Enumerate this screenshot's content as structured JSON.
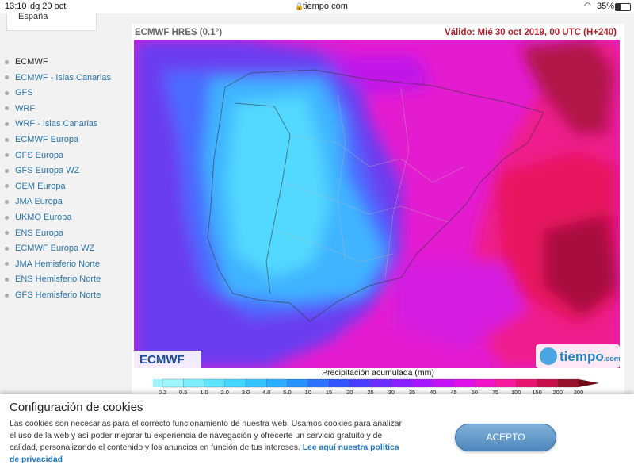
{
  "status_bar": {
    "time": "13:10",
    "date": "dg 20 oct",
    "url": "tiempo.com",
    "battery": "35%"
  },
  "sidebar": {
    "select": "España",
    "links": [
      "ECMWF",
      "ECMWF - Islas Canarias",
      "GFS",
      "WRF",
      "WRF - Islas Canarias",
      "ECMWF Europa",
      "GFS Europa",
      "GFS Europa WZ",
      "GEM Europa",
      "JMA Europa",
      "UKMO Europa",
      "ENS Europa",
      "ECMWF Europa WZ",
      "JMA Hemisferio Norte",
      "ENS Hemisferio Norte",
      "GFS Hemisferio Norte"
    ]
  },
  "map": {
    "model": "ECMWF HRES (0.1°)",
    "valid": "Válido: Mié 30 oct 2019, 00 UTC (H+240)",
    "logo_left": "ECMWF",
    "logo_right": "tiempo",
    "logo_right_suffix": ".com"
  },
  "legend": {
    "title": "Precipitación acumulada (mm)",
    "labels": [
      "0.2",
      "0.5",
      "1.0",
      "2.0",
      "3.0",
      "4.0",
      "5.0",
      "10",
      "15",
      "20",
      "25",
      "30",
      "35",
      "40",
      "45",
      "50",
      "75",
      "100",
      "150",
      "200",
      "300"
    ],
    "colors": [
      "#9ff5ff",
      "#7eeeff",
      "#5fe4ff",
      "#45d6ff",
      "#36c4ff",
      "#2aaeff",
      "#2592ff",
      "#2a74ff",
      "#3355ff",
      "#4a3cff",
      "#6a2cff",
      "#8a20ff",
      "#a818ff",
      "#c410f5",
      "#dc10e6",
      "#ee12c8",
      "#f51a9e",
      "#e81670",
      "#c5104c",
      "#98102c",
      "#6e0a14"
    ]
  },
  "cookies": {
    "title": "Configuración de cookies",
    "text": "Las cookies son necesarias para el correcto funcionamiento de nuestra web. Usamos cookies para analizar el uso de la web y así poder mejorar tu experiencia de navegación y ofrecerte un servicio gratuito y de calidad, personalizando el contenido y los anuncios en función de tus intereses.",
    "link": "Lee aquí nuestra política de privacidad",
    "button": "ACEPTO"
  }
}
